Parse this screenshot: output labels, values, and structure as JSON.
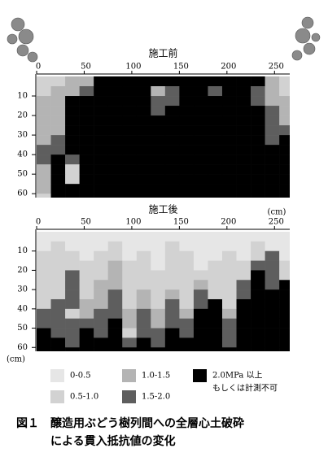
{
  "chart_data": [
    {
      "type": "heatmap",
      "title": "施工前",
      "xlim": [
        0,
        266
      ],
      "ylim": [
        0,
        62
      ],
      "xticks": [
        0,
        50,
        100,
        150,
        200,
        250
      ],
      "yticks": [
        10,
        20,
        30,
        40,
        50,
        60
      ],
      "xbins": [
        0,
        15,
        30,
        45,
        60,
        75,
        90,
        105,
        120,
        135,
        150,
        165,
        180,
        195,
        210,
        225,
        240,
        255,
        270
      ],
      "ybins": [
        0,
        5,
        10,
        15,
        20,
        25,
        30,
        35,
        40,
        45,
        50,
        55,
        60,
        65
      ],
      "grid": [
        [
          1,
          1,
          2,
          2,
          4,
          4,
          4,
          4,
          4,
          4,
          4,
          4,
          4,
          4,
          4,
          4,
          2,
          1
        ],
        [
          1,
          2,
          2,
          3,
          4,
          4,
          4,
          4,
          2,
          3,
          4,
          4,
          3,
          4,
          4,
          3,
          2,
          1
        ],
        [
          2,
          2,
          4,
          4,
          4,
          4,
          4,
          4,
          3,
          3,
          4,
          4,
          4,
          4,
          4,
          3,
          2,
          2
        ],
        [
          2,
          2,
          4,
          4,
          4,
          4,
          4,
          4,
          3,
          4,
          4,
          4,
          4,
          4,
          4,
          4,
          3,
          2
        ],
        [
          2,
          2,
          4,
          4,
          4,
          4,
          4,
          4,
          4,
          4,
          4,
          4,
          4,
          4,
          4,
          4,
          3,
          2
        ],
        [
          2,
          2,
          4,
          4,
          4,
          4,
          4,
          4,
          4,
          4,
          4,
          4,
          4,
          4,
          4,
          4,
          3,
          3
        ],
        [
          2,
          3,
          4,
          4,
          4,
          4,
          4,
          4,
          4,
          4,
          4,
          4,
          4,
          4,
          4,
          4,
          3,
          4
        ],
        [
          3,
          3,
          4,
          4,
          4,
          4,
          4,
          4,
          4,
          4,
          4,
          4,
          4,
          4,
          4,
          4,
          4,
          4
        ],
        [
          3,
          4,
          3,
          4,
          4,
          4,
          4,
          4,
          4,
          4,
          4,
          4,
          4,
          4,
          4,
          4,
          4,
          4
        ],
        [
          2,
          4,
          1,
          4,
          4,
          4,
          4,
          4,
          4,
          4,
          4,
          4,
          4,
          4,
          4,
          4,
          4,
          4
        ],
        [
          2,
          4,
          1,
          4,
          4,
          4,
          4,
          4,
          4,
          4,
          4,
          4,
          4,
          4,
          4,
          4,
          4,
          4
        ],
        [
          2,
          4,
          4,
          4,
          4,
          4,
          4,
          4,
          4,
          4,
          4,
          4,
          4,
          4,
          4,
          4,
          4,
          4
        ],
        [
          1,
          4,
          4,
          4,
          4,
          4,
          4,
          4,
          4,
          4,
          4,
          4,
          4,
          4,
          4,
          4,
          4,
          4
        ]
      ]
    },
    {
      "type": "heatmap",
      "title": "施工後",
      "x_label": "(cm)",
      "y_label": "(cm)",
      "xlim": [
        0,
        266
      ],
      "ylim": [
        0,
        62
      ],
      "xticks": [
        0,
        50,
        100,
        150,
        200,
        250
      ],
      "yticks": [
        10,
        20,
        30,
        40,
        50,
        60
      ],
      "xbins": [
        0,
        15,
        30,
        45,
        60,
        75,
        90,
        105,
        120,
        135,
        150,
        165,
        180,
        195,
        210,
        225,
        240,
        255,
        270
      ],
      "ybins": [
        0,
        5,
        10,
        15,
        20,
        25,
        30,
        35,
        40,
        45,
        50,
        55,
        60,
        65
      ],
      "grid": [
        [
          0,
          0,
          0,
          0,
          0,
          0,
          0,
          0,
          0,
          0,
          0,
          0,
          0,
          0,
          0,
          0,
          0,
          0
        ],
        [
          0,
          1,
          0,
          0,
          0,
          1,
          0,
          0,
          0,
          1,
          0,
          0,
          0,
          0,
          0,
          1,
          0,
          0
        ],
        [
          1,
          1,
          1,
          0,
          1,
          1,
          0,
          1,
          0,
          1,
          1,
          0,
          0,
          1,
          0,
          1,
          3,
          0
        ],
        [
          1,
          1,
          1,
          1,
          1,
          2,
          1,
          1,
          0,
          1,
          1,
          0,
          1,
          1,
          1,
          3,
          3,
          1
        ],
        [
          1,
          1,
          3,
          1,
          1,
          2,
          1,
          1,
          1,
          1,
          1,
          1,
          1,
          1,
          1,
          4,
          3,
          1
        ],
        [
          1,
          1,
          3,
          1,
          2,
          2,
          1,
          1,
          1,
          1,
          1,
          2,
          1,
          1,
          3,
          4,
          3,
          4
        ],
        [
          1,
          1,
          3,
          1,
          2,
          3,
          1,
          2,
          1,
          2,
          1,
          3,
          1,
          1,
          3,
          4,
          4,
          4
        ],
        [
          1,
          3,
          3,
          2,
          2,
          3,
          1,
          2,
          1,
          3,
          1,
          3,
          4,
          1,
          4,
          4,
          4,
          4
        ],
        [
          3,
          3,
          1,
          2,
          3,
          3,
          2,
          3,
          2,
          3,
          2,
          4,
          4,
          2,
          4,
          4,
          4,
          4
        ],
        [
          3,
          3,
          3,
          3,
          3,
          4,
          2,
          3,
          2,
          3,
          3,
          4,
          4,
          3,
          4,
          4,
          4,
          4
        ],
        [
          4,
          3,
          3,
          4,
          3,
          4,
          1,
          3,
          3,
          4,
          3,
          4,
          4,
          3,
          4,
          4,
          4,
          4
        ],
        [
          4,
          4,
          3,
          4,
          4,
          4,
          3,
          4,
          3,
          4,
          4,
          4,
          4,
          3,
          4,
          4,
          4,
          4
        ],
        [
          4,
          4,
          4,
          4,
          4,
          4,
          4,
          4,
          4,
          4,
          4,
          4,
          4,
          4,
          4,
          4,
          4,
          4
        ]
      ]
    }
  ],
  "legend": [
    {
      "label": "0-0.5",
      "color": "#e6e6e6"
    },
    {
      "label": "0.5-1.0",
      "color": "#d2d2d2"
    },
    {
      "label": "1.0-1.5",
      "color": "#b4b4b4"
    },
    {
      "label": "1.5-2.0",
      "color": "#5e5e5e"
    },
    {
      "label": "2.0MPa 以上",
      "label2": "もしくは計測不可",
      "color": "#000000"
    }
  ],
  "caption": {
    "line1": "図１　醸造用ぶどう樹列間への全層心土破砕",
    "line2": "による貫入抵抗値の変化"
  }
}
